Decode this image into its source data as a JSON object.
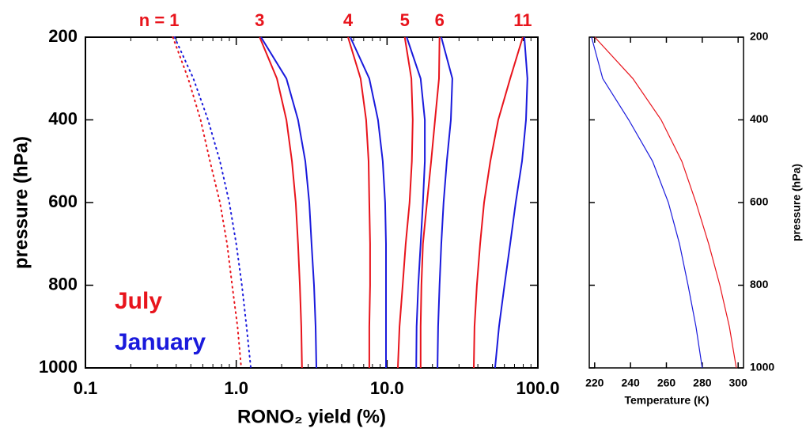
{
  "chart_data": [
    {
      "type": "line",
      "x_label": "RONO₂ yield (%)",
      "y_label": "pressure (hPa)",
      "x_log": true,
      "xlim": [
        0.1,
        100
      ],
      "xticks": [
        0.1,
        {
          "value": 1,
          "label": "1.0"
        },
        {
          "value": 10,
          "label": "10.0"
        },
        {
          "value": 100,
          "label": "100.0"
        }
      ],
      "ylim": [
        1000,
        200
      ],
      "yticks": [
        200,
        400,
        600,
        800,
        1000
      ],
      "y": [
        200,
        300,
        400,
        500,
        600,
        700,
        800,
        900,
        1000
      ],
      "curve_labels": [
        "n = 1",
        "3",
        "4",
        "5",
        "6",
        "11"
      ],
      "curve_styles": [
        "dotted",
        "solid",
        "solid",
        "solid",
        "solid",
        "solid"
      ],
      "legend": "lower left",
      "series": [
        {
          "name": "July",
          "color": "#e8141c",
          "curves": [
            [
              0.38,
              0.48,
              0.58,
              0.67,
              0.78,
              0.87,
              0.94,
              1.02,
              1.08
            ],
            [
              1.43,
              1.86,
              2.15,
              2.34,
              2.48,
              2.57,
              2.64,
              2.7,
              2.73
            ],
            [
              5.51,
              6.68,
              7.27,
              7.54,
              7.63,
              7.72,
              7.72,
              7.63,
              7.63
            ],
            [
              13.1,
              14.5,
              14.8,
              14.6,
              14.1,
              13.3,
              12.7,
              12.1,
              11.8
            ],
            [
              22.3,
              22.1,
              20.8,
              19.6,
              18.4,
              17.3,
              16.9,
              16.7,
              16.7
            ],
            [
              79.4,
              65.5,
              54.6,
              48.4,
              44.0,
              41.4,
              39.4,
              38.0,
              37.6
            ]
          ]
        },
        {
          "name": "January",
          "color": "#1a1adc",
          "curves": [
            [
              0.39,
              0.52,
              0.65,
              0.78,
              0.9,
              1.0,
              1.09,
              1.17,
              1.25
            ],
            [
              1.46,
              2.15,
              2.57,
              2.87,
              3.05,
              3.16,
              3.28,
              3.36,
              3.4
            ],
            [
              5.71,
              7.63,
              8.71,
              9.37,
              9.71,
              9.84,
              9.84,
              9.84,
              9.84
            ],
            [
              13.5,
              16.7,
              17.8,
              17.8,
              17.3,
              16.7,
              16.1,
              15.7,
              15.6
            ],
            [
              22.9,
              27.1,
              26.5,
              24.9,
              23.7,
              22.9,
              22.3,
              21.8,
              21.6
            ],
            [
              81.3,
              85.3,
              83.4,
              78.5,
              71.3,
              65.5,
              60.1,
              55.3,
              52.0
            ]
          ]
        }
      ]
    },
    {
      "type": "line",
      "x_label": "Temperature (K)",
      "y_label": "pressure (hPa)",
      "y_axis_side": "right",
      "xlim": [
        217,
        303
      ],
      "xticks": [
        220,
        240,
        260,
        280,
        300
      ],
      "ylim": [
        1000,
        200
      ],
      "yticks": [
        200,
        400,
        600,
        800,
        1000
      ],
      "y": [
        200,
        300,
        400,
        500,
        600,
        700,
        800,
        900,
        1000
      ],
      "series": [
        {
          "color": "#e8141c",
          "values": [
            220.1,
            241.3,
            257.1,
            268.6,
            276.5,
            283.6,
            289.8,
            295.1,
            299.0
          ]
        },
        {
          "color": "#1a1adc",
          "values": [
            218.3,
            224.5,
            239.0,
            252.3,
            261.1,
            267.3,
            272.1,
            276.5,
            280.0
          ]
        }
      ]
    }
  ]
}
